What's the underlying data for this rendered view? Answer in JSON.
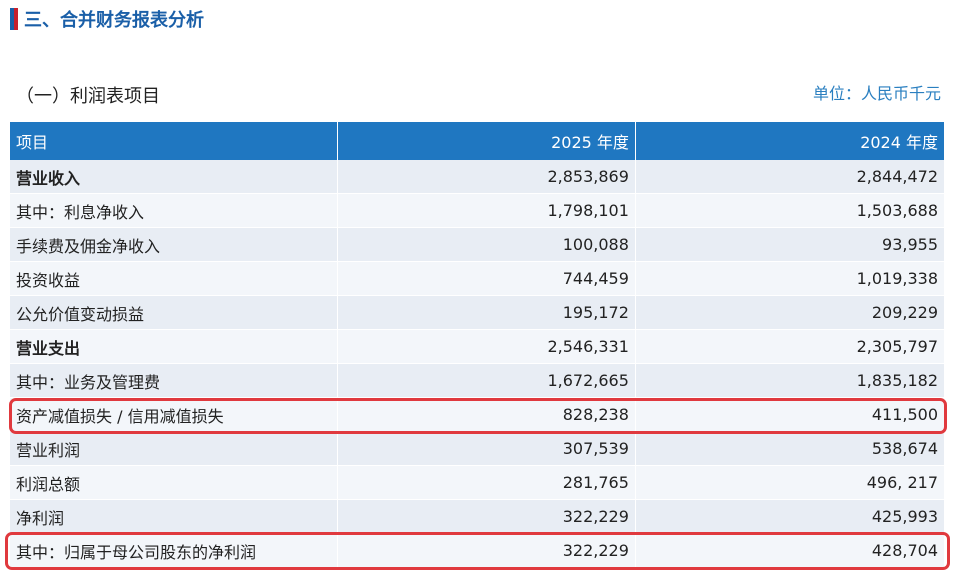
{
  "section": {
    "title": "三、合并财务报表分析"
  },
  "subsection": {
    "title": "（一）利润表项目",
    "unit": "单位：人民币千元"
  },
  "table": {
    "headers": [
      "项目",
      "2025 年度",
      "2024 年度"
    ],
    "rows": [
      {
        "label": "营业收入",
        "v2025": "2,853,869",
        "v2024": "2,844,472"
      },
      {
        "label": "其中：利息净收入",
        "v2025": "1,798,101",
        "v2024": "1,503,688"
      },
      {
        "label": "手续费及佣金净收入",
        "v2025": "100,088",
        "v2024": "93,955"
      },
      {
        "label": "投资收益",
        "v2025": "744,459",
        "v2024": "1,019,338"
      },
      {
        "label": "公允价值变动损益",
        "v2025": "195,172",
        "v2024": "209,229"
      },
      {
        "label": "营业支出",
        "v2025": "2,546,331",
        "v2024": "2,305,797"
      },
      {
        "label": "其中：业务及管理费",
        "v2025": "1,672,665",
        "v2024": "1,835,182"
      },
      {
        "label": "资产减值损失 / 信用减值损失",
        "v2025": "828,238",
        "v2024": "411,500"
      },
      {
        "label": "营业利润",
        "v2025": "307,539",
        "v2024": "538,674"
      },
      {
        "label": "利润总额",
        "v2025": "281,765",
        "v2024": "496, 217"
      },
      {
        "label": "净利润",
        "v2025": "322,229",
        "v2024": "425,993"
      },
      {
        "label": "其中：归属于母公司股东的净利润",
        "v2025": "322,229",
        "v2024": "428,704"
      }
    ]
  },
  "colors": {
    "header_bg": "#1f77c1",
    "title": "#1a5fa8",
    "highlight": "#e0393e"
  }
}
